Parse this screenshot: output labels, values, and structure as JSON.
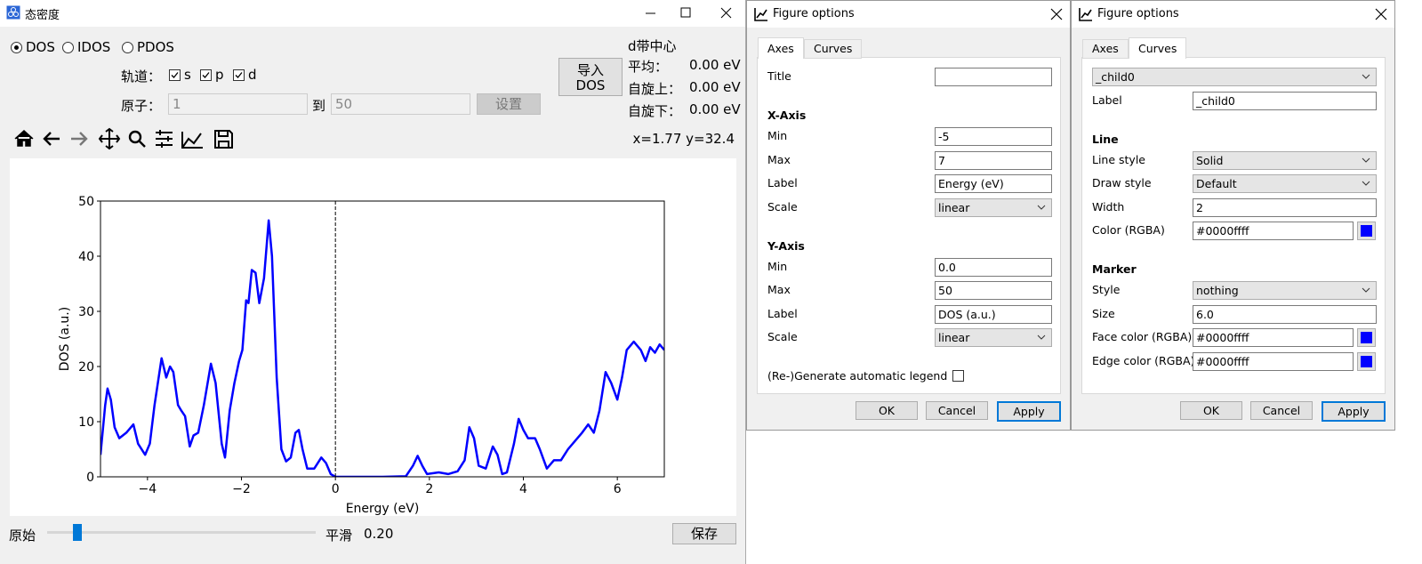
{
  "main_window": {
    "title": "态密度",
    "modes": [
      "DOS",
      "IDOS",
      "PDOS"
    ],
    "selected_mode": 0,
    "orbital_label": "轨道：",
    "orbitals": [
      "s",
      "p",
      "d"
    ],
    "orbitals_checked": [
      true,
      true,
      true
    ],
    "atom_label": "原子：",
    "atom_from": "1",
    "atom_to_label": "到",
    "atom_to": "50",
    "set_button": "设置",
    "import_button": [
      "导入",
      "DOS"
    ],
    "d_band": {
      "title": "d带中心",
      "rows": [
        {
          "label": "平均：",
          "value": "0.00 eV"
        },
        {
          "label": "自旋上：",
          "value": "0.00 eV"
        },
        {
          "label": "自旋下：",
          "value": "0.00 eV"
        }
      ]
    },
    "coordinates": "x=1.77 y=32.4",
    "raw_label": "原始",
    "smooth_label": "平滑",
    "smooth_value": "0.20",
    "save_button": "保存"
  },
  "chart_data": {
    "type": "line",
    "xlabel": "Energy (eV)",
    "ylabel": "DOS (a.u.)",
    "x": [
      -5,
      -4.9,
      -4.85,
      -4.78,
      -4.7,
      -4.6,
      -4.45,
      -4.3,
      -4.2,
      -4.05,
      -3.95,
      -3.85,
      -3.7,
      -3.6,
      -3.52,
      -3.45,
      -3.35,
      -3.28,
      -3.2,
      -3.1,
      -3.02,
      -2.92,
      -2.8,
      -2.65,
      -2.55,
      -2.42,
      -2.35,
      -2.25,
      -2.15,
      -2.05,
      -1.98,
      -1.9,
      -1.85,
      -1.78,
      -1.7,
      -1.62,
      -1.52,
      -1.42,
      -1.35,
      -1.25,
      -1.15,
      -1.05,
      -0.95,
      -0.85,
      -0.78,
      -0.7,
      -0.6,
      -0.45,
      -0.3,
      -0.2,
      -0.1,
      0,
      0.5,
      1,
      1.5,
      1.65,
      1.75,
      1.85,
      1.95,
      2.2,
      2.4,
      2.6,
      2.75,
      2.85,
      2.95,
      3.05,
      3.2,
      3.35,
      3.45,
      3.55,
      3.65,
      3.8,
      3.9,
      4,
      4.1,
      4.25,
      4.35,
      4.5,
      4.65,
      4.8,
      4.95,
      5.1,
      5.25,
      5.38,
      5.5,
      5.62,
      5.75,
      5.87,
      6,
      6.1,
      6.2,
      6.35,
      6.5,
      6.6,
      6.7,
      6.8,
      6.9,
      7
    ],
    "series": [
      {
        "color": "#0000ff",
        "values": [
          4,
          13,
          16,
          14,
          9,
          7,
          8,
          9.5,
          6,
          4,
          6,
          13,
          21.5,
          18,
          20,
          19,
          13,
          12,
          11,
          5.5,
          7.5,
          8,
          13,
          20.5,
          17,
          6,
          3.5,
          12,
          17,
          21,
          23,
          32,
          31.5,
          37.5,
          37,
          31.5,
          36,
          46.5,
          40,
          18,
          5,
          2.8,
          3.5,
          8,
          8.5,
          5,
          1.5,
          1.5,
          3.5,
          2.5,
          0.5,
          0,
          0,
          0,
          0.1,
          2,
          3.8,
          2,
          0.5,
          0.8,
          0.5,
          1,
          3,
          9,
          7,
          2,
          1.5,
          5.5,
          4,
          0.5,
          0.8,
          6,
          10.5,
          8.5,
          7,
          7,
          5,
          1.5,
          3,
          3,
          5,
          6.5,
          8,
          9.5,
          8,
          12,
          19,
          17,
          14,
          18,
          23,
          24.5,
          23,
          21,
          23.5,
          22.5,
          24,
          23
        ]
      }
    ],
    "xlim": [
      -5,
      7
    ],
    "ylim": [
      0,
      50
    ],
    "xticks": [
      {
        "value": -4,
        "label": "−4"
      },
      {
        "value": -2,
        "label": "−2"
      },
      0,
      2,
      4,
      6
    ],
    "yticks": [
      0,
      10,
      20,
      30,
      40,
      50
    ],
    "vline": 0
  },
  "dialogs": [
    {
      "title": "Figure options",
      "tabs": [
        "Axes",
        "Curves"
      ],
      "active_tab": 0,
      "rows": [
        {
          "label": "Title"
        },
        {
          "heading": "X-Axis"
        },
        {
          "label": "Min",
          "value": "-5"
        },
        {
          "label": "Max",
          "value": "7"
        },
        {
          "label": "Label",
          "value": "Energy (eV)"
        },
        {
          "label": "Scale",
          "value": "linear",
          "dropdown": true
        },
        {
          "heading": "Y-Axis"
        },
        {
          "label": "Min",
          "value": "0.0"
        },
        {
          "label": "Max",
          "value": "50"
        },
        {
          "label": "Label",
          "value": "DOS (a.u.)"
        },
        {
          "label": "Scale",
          "value": "linear",
          "dropdown": true
        },
        {
          "checkbox": "(Re-)Generate automatic legend"
        }
      ],
      "buttons": [
        "OK",
        "Cancel",
        "Apply"
      ]
    },
    {
      "title": "Figure options",
      "tabs": [
        "Axes",
        "Curves"
      ],
      "active_tab": 1,
      "rows": [
        {
          "value": "_child0",
          "dropdown": true
        },
        {
          "label": "Label",
          "value": "_child0"
        },
        {
          "heading": "Line"
        },
        {
          "label": "Line style",
          "value": "Solid",
          "dropdown": true
        },
        {
          "label": "Draw style",
          "value": "Default",
          "dropdown": true
        },
        {
          "label": "Width",
          "value": "2"
        },
        {
          "label": "Color (RGBA)",
          "value": "#0000ffff",
          "swatch": true
        },
        {
          "heading": "Marker"
        },
        {
          "label": "Style",
          "value": "nothing",
          "dropdown": true
        },
        {
          "label": "Size",
          "value": "6.0"
        },
        {
          "label": "Face color (RGBA)",
          "value": "#0000ffff",
          "swatch": true
        },
        {
          "label": "Edge color (RGBA)",
          "value": "#0000ffff",
          "swatch": true
        }
      ],
      "buttons": [
        "OK",
        "Cancel",
        "Apply"
      ]
    }
  ]
}
